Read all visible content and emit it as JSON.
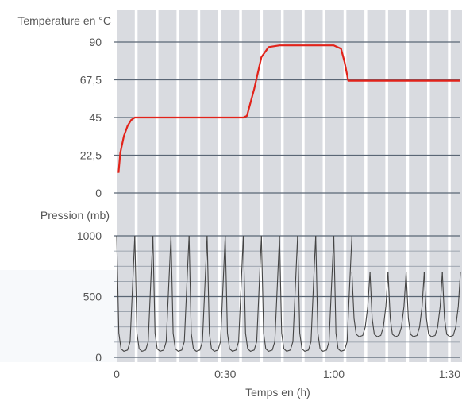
{
  "chart_data": [
    {
      "type": "line",
      "ylabel": "Température en °C",
      "ylim": [
        0,
        90
      ],
      "yticks": [
        "0",
        "22,5",
        "45",
        "67,5",
        "90"
      ],
      "xlim_minutes": [
        0,
        95
      ],
      "grid": true,
      "series": [
        {
          "color": "#e2231a",
          "x_minutes": [
            0.5,
            1,
            2,
            3,
            4,
            5,
            7,
            10,
            15,
            20,
            25,
            30,
            32,
            34,
            35,
            36,
            38,
            40,
            42,
            45,
            50,
            55,
            58,
            60,
            62,
            63,
            64,
            70,
            80,
            90,
            95
          ],
          "y": [
            12,
            24,
            34,
            40,
            43.5,
            45,
            45,
            45,
            45,
            45,
            45,
            45,
            45,
            45,
            45,
            46,
            62,
            81,
            87,
            88,
            88,
            88,
            88,
            88,
            86,
            78,
            67,
            67,
            67,
            67,
            67
          ]
        }
      ]
    },
    {
      "type": "line",
      "ylabel": "Pression (mb)",
      "xlabel": "Temps en (h)",
      "ylim": [
        0,
        1000
      ],
      "yticks": [
        "0",
        "500",
        "1000"
      ],
      "xticks": [
        "0",
        "0:30",
        "1:00",
        "1:30"
      ],
      "xlim_minutes": [
        0,
        95
      ],
      "grid": true,
      "series": [
        {
          "color": "#444444",
          "cycle_start_minutes": [
            0,
            5,
            10,
            15,
            20,
            25,
            30,
            35,
            40,
            45,
            50,
            55,
            60,
            65,
            70,
            75,
            80,
            85,
            90
          ],
          "cycle_peak_mb": [
            1000,
            1000,
            1000,
            1000,
            1000,
            1000,
            1000,
            1000,
            1000,
            1000,
            1000,
            1000,
            1000,
            700,
            700,
            700,
            700,
            700,
            700
          ],
          "cycle_min_mb": [
            50,
            50,
            50,
            50,
            50,
            50,
            50,
            50,
            50,
            50,
            50,
            50,
            50,
            170,
            170,
            170,
            170,
            170,
            170
          ]
        }
      ]
    }
  ]
}
